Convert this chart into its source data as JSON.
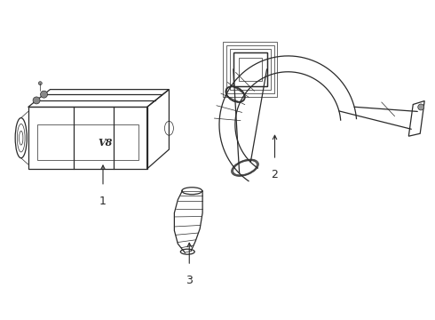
{
  "bg_color": "#ffffff",
  "line_color": "#2a2a2a",
  "label_fontsize": 9,
  "figsize": [
    4.9,
    3.6
  ],
  "dpi": 100
}
